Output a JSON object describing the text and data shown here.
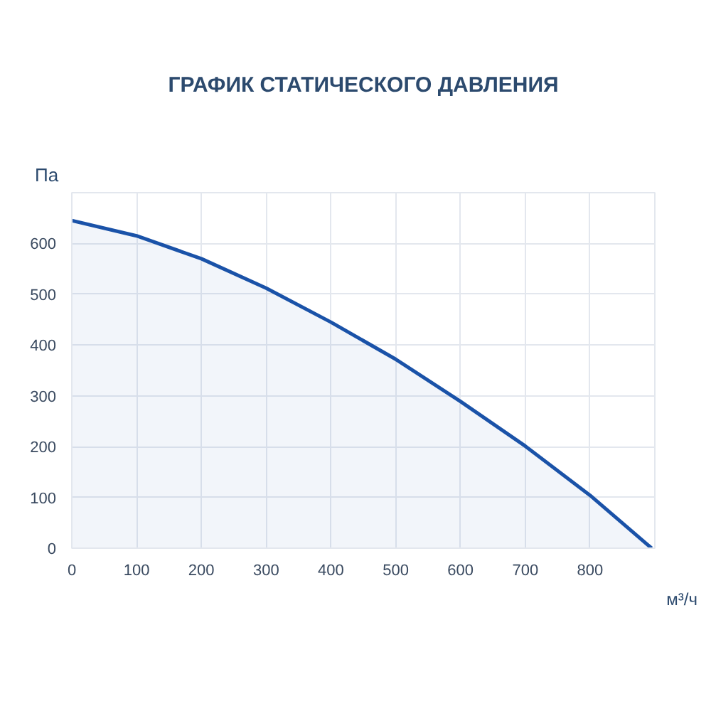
{
  "chart_data": {
    "type": "area",
    "title": "ГРАФИК СТАТИЧЕСКОГО ДАВЛЕНИЯ",
    "xlabel": "м³/ч",
    "ylabel": "Па",
    "x": [
      0,
      100,
      200,
      300,
      400,
      500,
      600,
      700,
      800,
      895
    ],
    "series": [
      {
        "color": "#1a52a8",
        "values": [
          645,
          615,
          570,
          512,
          445,
          372,
          289,
          201,
          104,
          0
        ]
      }
    ],
    "xlim": [
      0,
      900
    ],
    "ylim": [
      0,
      700
    ],
    "xticks": [
      0,
      100,
      200,
      300,
      400,
      500,
      600,
      700,
      800
    ],
    "yticks": [
      0,
      100,
      200,
      300,
      400,
      500,
      600
    ],
    "grid": true
  }
}
